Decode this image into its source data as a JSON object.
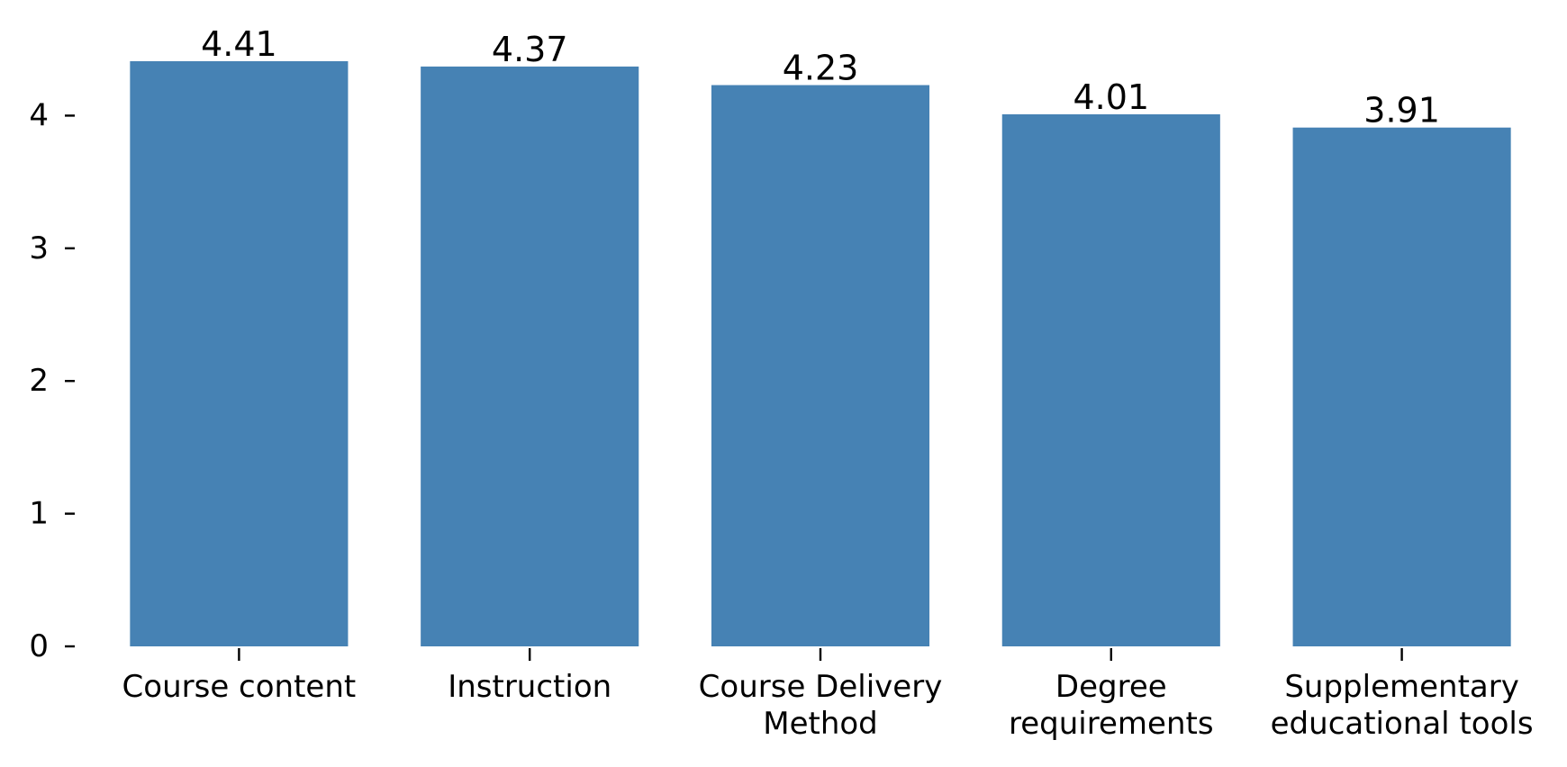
{
  "chart_data": {
    "type": "bar",
    "categories": [
      [
        "Course content"
      ],
      [
        "Instruction"
      ],
      [
        "Course Delivery",
        "Method"
      ],
      [
        "Degree",
        "requirements"
      ],
      [
        "Supplementary",
        "educational tools"
      ]
    ],
    "values": [
      4.41,
      4.37,
      4.23,
      4.01,
      3.91
    ],
    "value_labels": [
      "4.41",
      "4.37",
      "4.23",
      "4.01",
      "3.91"
    ],
    "title": "",
    "xlabel": "",
    "ylabel": "",
    "ylim": [
      0,
      4.41
    ],
    "yticks": [
      0,
      1,
      2,
      3,
      4
    ],
    "ytick_labels": [
      "0",
      "1",
      "2",
      "3",
      "4"
    ],
    "bar_color": "#4682b4",
    "grid": false
  }
}
